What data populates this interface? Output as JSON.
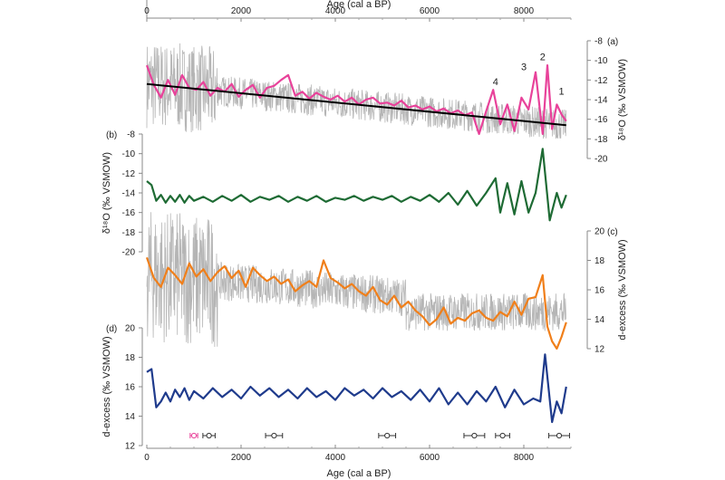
{
  "chart_data": {
    "type": "line",
    "x_axis": {
      "label": "Age (cal a BP)",
      "range": [
        0,
        9000
      ],
      "ticks": [
        0,
        2000,
        4000,
        6000,
        8000
      ],
      "tick_labels": [
        "0",
        "2000",
        "4000",
        "6000",
        "8000"
      ]
    },
    "panels": [
      {
        "id": "a",
        "panel_label": "(a)",
        "ylabel": "δ¹⁸O (‰ VSMOW)",
        "y_side": "right",
        "ylim": [
          -20,
          -8
        ],
        "ticks": [
          -8,
          -10,
          -12,
          -14,
          -16,
          -18,
          -20
        ],
        "tick_labels": [
          "-8",
          "-10",
          "-12",
          "-14",
          "-16",
          "-18",
          "-20"
        ],
        "series": [
          {
            "color": "#e8429a",
            "x": [
              0,
              150,
              300,
              450,
              600,
              750,
              900,
              1050,
              1200,
              1350,
              1500,
              1650,
              1800,
              1950,
              2100,
              2250,
              2400,
              2550,
              2700,
              2850,
              3000,
              3150,
              3300,
              3450,
              3600,
              3750,
              3900,
              4050,
              4200,
              4350,
              4500,
              4650,
              4800,
              4950,
              5100,
              5250,
              5400,
              5550,
              5700,
              5850,
              6000,
              6150,
              6300,
              6450,
              6600,
              6750,
              6900,
              7050,
              7200,
              7350,
              7500,
              7650,
              7800,
              7950,
              8100,
              8250,
              8400,
              8500,
              8600,
              8700,
              8800,
              8900
            ],
            "y": [
              -10.5,
              -12.5,
              -13.8,
              -12.0,
              -13.5,
              -11.5,
              -12.8,
              -13.0,
              -12.2,
              -13.6,
              -12.8,
              -13.2,
              -12.4,
              -13.7,
              -13.0,
              -12.5,
              -13.8,
              -12.8,
              -12.6,
              -12.0,
              -11.5,
              -13.6,
              -13.2,
              -13.9,
              -13.3,
              -13.7,
              -14.0,
              -13.6,
              -14.2,
              -13.8,
              -14.5,
              -14.0,
              -13.8,
              -14.4,
              -14.3,
              -14.6,
              -14.1,
              -14.8,
              -14.6,
              -15.0,
              -14.7,
              -15.2,
              -14.9,
              -15.4,
              -15.1,
              -15.6,
              -15.3,
              -17.5,
              -15.2,
              -13.0,
              -16.5,
              -14.5,
              -17.2,
              -13.8,
              -15.0,
              -11.2,
              -17.5,
              -10.5,
              -17.0,
              -14.5,
              -15.5,
              -16.2
            ]
          },
          {
            "name": "trend",
            "color": "#000000",
            "x": [
              0,
              8900
            ],
            "y": [
              -12.4,
              -16.6
            ]
          }
        ],
        "annotations": [
          {
            "text": "4",
            "x": 7400,
            "y": -12.5
          },
          {
            "text": "3",
            "x": 8000,
            "y": -11.0
          },
          {
            "text": "2",
            "x": 8400,
            "y": -10.0
          },
          {
            "text": "1",
            "x": 8800,
            "y": -13.5
          }
        ]
      },
      {
        "id": "b",
        "panel_label": "(b)",
        "ylabel": "δ¹⁸O (‰ VSMOW)",
        "y_side": "left",
        "ylim": [
          -20,
          -8
        ],
        "ticks": [
          -8,
          -10,
          -12,
          -14,
          -16,
          -18,
          -20
        ],
        "tick_labels": [
          "-8",
          "-10",
          "-12",
          "-14",
          "-16",
          "-18",
          "-20"
        ],
        "series": [
          {
            "color": "#1e6b34",
            "x": [
              0,
              100,
              200,
              300,
              400,
              500,
              600,
              700,
              800,
              900,
              1000,
              1200,
              1400,
              1600,
              1800,
              2000,
              2200,
              2400,
              2600,
              2800,
              3000,
              3200,
              3400,
              3600,
              3800,
              4000,
              4200,
              4400,
              4600,
              4800,
              5000,
              5200,
              5400,
              5600,
              5800,
              6000,
              6200,
              6400,
              6600,
              6800,
              7000,
              7200,
              7400,
              7500,
              7650,
              7800,
              7950,
              8100,
              8250,
              8400,
              8550,
              8700,
              8800,
              8900
            ],
            "y": [
              -12.8,
              -13.2,
              -14.8,
              -14.2,
              -15.0,
              -14.3,
              -14.9,
              -14.2,
              -15.0,
              -14.3,
              -14.8,
              -14.4,
              -14.9,
              -14.3,
              -14.8,
              -14.2,
              -14.9,
              -14.4,
              -14.7,
              -14.3,
              -14.9,
              -14.4,
              -14.8,
              -14.3,
              -14.9,
              -14.5,
              -14.7,
              -14.3,
              -14.8,
              -14.4,
              -14.7,
              -14.3,
              -14.9,
              -14.4,
              -14.8,
              -14.2,
              -14.9,
              -14.0,
              -15.2,
              -13.8,
              -15.3,
              -14.0,
              -12.5,
              -16.0,
              -13.0,
              -16.2,
              -12.8,
              -16.0,
              -14.0,
              -9.5,
              -16.8,
              -14.0,
              -15.5,
              -14.2
            ]
          }
        ]
      },
      {
        "id": "c",
        "panel_label": "(c)",
        "ylabel": "d-excess (‰ VSMOW)",
        "y_side": "right",
        "ylim": [
          12,
          20
        ],
        "ticks": [
          20,
          18,
          16,
          14,
          12
        ],
        "tick_labels": [
          "20",
          "18",
          "16",
          "14",
          "12"
        ],
        "series": [
          {
            "color": "#f07f1a",
            "x": [
              0,
              150,
              300,
              450,
              600,
              750,
              900,
              1050,
              1200,
              1350,
              1500,
              1650,
              1800,
              1950,
              2100,
              2250,
              2400,
              2550,
              2700,
              2850,
              3000,
              3150,
              3300,
              3450,
              3600,
              3750,
              3900,
              4050,
              4200,
              4350,
              4500,
              4650,
              4800,
              4950,
              5100,
              5250,
              5400,
              5550,
              5700,
              5850,
              6000,
              6150,
              6300,
              6450,
              6600,
              6750,
              6900,
              7050,
              7200,
              7350,
              7500,
              7650,
              7800,
              7950,
              8100,
              8250,
              8400,
              8500,
              8600,
              8700,
              8800,
              8900
            ],
            "y": [
              18.2,
              16.8,
              16.2,
              17.5,
              17.0,
              16.4,
              17.8,
              16.9,
              17.4,
              16.6,
              17.2,
              17.6,
              16.8,
              17.3,
              16.2,
              17.5,
              17.0,
              16.6,
              16.9,
              16.4,
              16.7,
              15.9,
              16.3,
              16.6,
              16.2,
              18.0,
              16.8,
              16.5,
              16.1,
              16.4,
              15.9,
              15.6,
              16.2,
              15.3,
              15.0,
              15.6,
              14.8,
              15.2,
              14.6,
              14.2,
              13.6,
              14.0,
              14.8,
              13.7,
              14.1,
              13.9,
              14.4,
              14.6,
              14.1,
              13.9,
              14.5,
              14.2,
              15.2,
              14.3,
              15.4,
              15.5,
              17.0,
              13.5,
              12.5,
              12.0,
              12.8,
              13.8
            ]
          }
        ]
      },
      {
        "id": "d",
        "panel_label": "(d)",
        "ylabel": "d-excess (‰ VSMOW)",
        "y_side": "left",
        "ylim": [
          12,
          20
        ],
        "ticks": [
          20,
          18,
          16,
          14,
          12
        ],
        "tick_labels": [
          "20",
          "18",
          "16",
          "14",
          "12"
        ],
        "series": [
          {
            "color": "#1f3b8c",
            "x": [
              0,
              100,
              200,
              300,
              400,
              500,
              600,
              700,
              800,
              900,
              1000,
              1200,
              1400,
              1600,
              1800,
              2000,
              2200,
              2400,
              2600,
              2800,
              3000,
              3200,
              3400,
              3600,
              3800,
              4000,
              4200,
              4400,
              4600,
              4800,
              5000,
              5200,
              5400,
              5600,
              5800,
              6000,
              6200,
              6400,
              6600,
              6800,
              7000,
              7200,
              7400,
              7600,
              7800,
              8000,
              8200,
              8350,
              8450,
              8600,
              8700,
              8800,
              8900
            ],
            "y": [
              17.0,
              17.2,
              14.6,
              15.0,
              15.6,
              15.0,
              15.8,
              15.3,
              15.9,
              15.1,
              15.7,
              15.2,
              15.9,
              15.3,
              15.8,
              15.2,
              16.0,
              15.4,
              15.9,
              15.3,
              15.8,
              15.2,
              15.9,
              15.3,
              15.7,
              15.1,
              15.9,
              15.4,
              15.8,
              15.2,
              15.9,
              15.3,
              15.7,
              15.1,
              15.8,
              15.0,
              15.9,
              14.8,
              15.6,
              14.8,
              15.7,
              15.0,
              16.0,
              14.6,
              15.8,
              14.8,
              15.2,
              15.0,
              18.2,
              13.6,
              15.0,
              14.2,
              16.0
            ]
          }
        ]
      }
    ],
    "dating_points": [
      {
        "age": 1000,
        "err": 80,
        "color": "#e8429a"
      },
      {
        "age": 1320,
        "err": 130,
        "color": "#333333"
      },
      {
        "age": 2700,
        "err": 180,
        "color": "#333333"
      },
      {
        "age": 5100,
        "err": 180,
        "color": "#333333"
      },
      {
        "age": 6950,
        "err": 220,
        "color": "#333333"
      },
      {
        "age": 7550,
        "err": 150,
        "color": "#333333"
      },
      {
        "age": 8750,
        "err": 220,
        "color": "#333333"
      }
    ]
  }
}
